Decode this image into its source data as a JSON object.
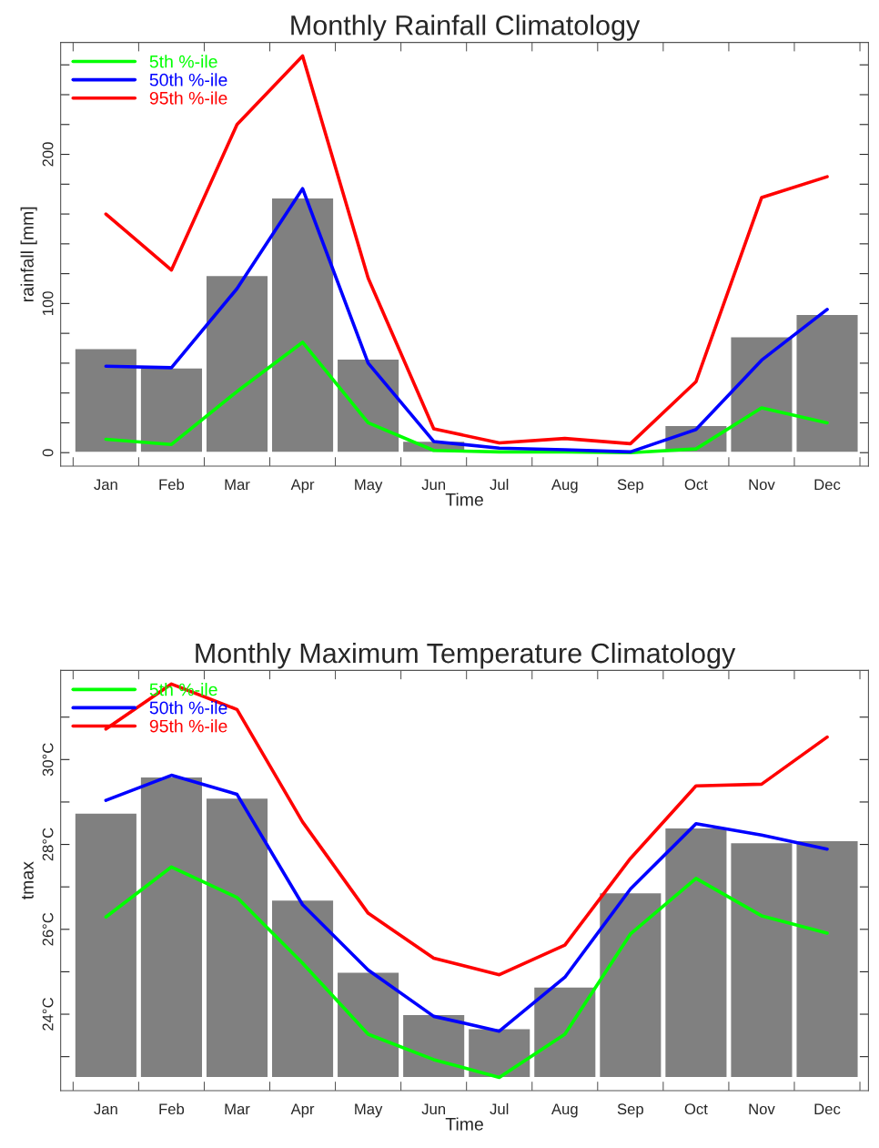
{
  "chart_data": [
    {
      "type": "bar",
      "title": "Monthly Rainfall Climatology",
      "xlabel": "Time",
      "ylabel": "rainfall [mm]",
      "categories": [
        "Jan",
        "Feb",
        "Mar",
        "Apr",
        "May",
        "Jun",
        "Jul",
        "Aug",
        "Sep",
        "Oct",
        "Nov",
        "Dec"
      ],
      "ylim": [
        -9,
        275
      ],
      "yticks": [
        0,
        {
          "value": 20,
          "label": null
        },
        {
          "value": 40,
          "label": null
        },
        {
          "value": 60,
          "label": null
        },
        {
          "value": 80,
          "label": null
        },
        100,
        {
          "value": 120,
          "label": null
        },
        {
          "value": 140,
          "label": null
        },
        {
          "value": 160,
          "label": null
        },
        {
          "value": 180,
          "label": null
        },
        200,
        {
          "value": 220,
          "label": null
        },
        {
          "value": 240,
          "label": null
        },
        {
          "value": 260,
          "label": null
        }
      ],
      "grid": false,
      "legend": "top left",
      "series": [
        {
          "color": "#808080",
          "values": [
            70,
            57,
            119,
            171,
            63,
            8,
            null,
            null,
            null,
            18.5,
            78,
            93
          ]
        },
        {
          "type": "line",
          "name": "5th %-ile",
          "color": "#00ff00",
          "values": [
            9,
            5.5,
            41,
            74,
            20,
            1.5,
            0.5,
            0.5,
            0,
            2.5,
            30,
            20
          ]
        },
        {
          "type": "line",
          "name": "50th %-ile",
          "color": "#0000ff",
          "values": [
            58,
            57,
            110,
            177,
            60,
            7.5,
            3,
            2,
            0.5,
            15.5,
            62,
            96
          ]
        },
        {
          "type": "line",
          "name": "95th %-ile",
          "color": "#ff0000",
          "values": [
            160,
            122.5,
            220,
            266,
            117,
            16,
            6.5,
            9.5,
            6,
            47.6,
            171,
            185
          ]
        }
      ]
    },
    {
      "type": "bar",
      "title": "Monthly Maximum Temperature Climatology",
      "xlabel": "Time",
      "ylabel": "tmax",
      "categories": [
        "Jan",
        "Feb",
        "Mar",
        "Apr",
        "May",
        "Jun",
        "Jul",
        "Aug",
        "Sep",
        "Oct",
        "Nov",
        "Dec"
      ],
      "ylim": [
        22.2,
        32.1
      ],
      "yticks": [
        {
          "value": 23,
          "label": null
        },
        {
          "value": 24,
          "label": "24°C"
        },
        {
          "value": 25,
          "label": null
        },
        {
          "value": 26,
          "label": "26°C"
        },
        {
          "value": 27,
          "label": null
        },
        {
          "value": 28,
          "label": "28°C"
        },
        {
          "value": 29,
          "label": null
        },
        {
          "value": 30,
          "label": "30°C"
        },
        {
          "value": 31,
          "label": null
        }
      ],
      "grid": false,
      "legend": "top left",
      "series": [
        {
          "color": "#808080",
          "base": [
            22.5,
            22.5,
            22.5,
            22.5,
            22.5,
            22.5,
            22.5,
            22.5,
            22.5,
            22.5,
            22.5,
            22.5
          ],
          "values": [
            6.25,
            7.1,
            6.6,
            4.2,
            2.5,
            1.5,
            1.17,
            2.15,
            4.37,
            5.9,
            5.55,
            5.6
          ]
        },
        {
          "type": "line",
          "name": "5th %-ile",
          "color": "#00ff00",
          "values": [
            26.29,
            27.47,
            26.75,
            25.2,
            23.53,
            22.93,
            22.51,
            23.53,
            25.89,
            27.2,
            26.32,
            25.91
          ]
        },
        {
          "type": "line",
          "name": "50th %-ile",
          "color": "#0000ff",
          "values": [
            29.04,
            29.63,
            29.18,
            26.58,
            25.04,
            23.95,
            23.6,
            24.87,
            26.95,
            28.49,
            28.22,
            27.89
          ]
        },
        {
          "type": "line",
          "name": "95th %-ile",
          "color": "#ff0000",
          "values": [
            30.72,
            31.78,
            31.18,
            28.53,
            26.38,
            25.32,
            24.93,
            25.63,
            27.67,
            29.38,
            29.42,
            30.53
          ]
        }
      ]
    }
  ]
}
